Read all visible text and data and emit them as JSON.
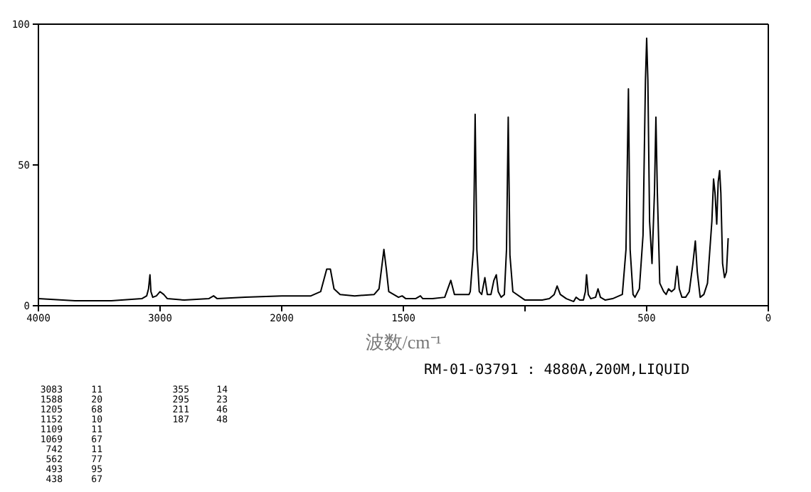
{
  "chart_data": [
    {
      "type": "line",
      "color": "#000000",
      "xlim": [
        4000,
        2000
      ],
      "xticks": [
        4000,
        3000,
        2000
      ],
      "ylim": [
        0,
        100
      ],
      "yticks": [
        0,
        50,
        100
      ],
      "x": [
        4000,
        3700,
        3400,
        3150,
        3110,
        3095,
        3083,
        3075,
        3060,
        3030,
        3000,
        2970,
        2940,
        2800,
        2600,
        2560,
        2530,
        2300,
        2000
      ],
      "values": [
        2.5,
        1.8,
        1.8,
        2.5,
        3.5,
        6,
        11,
        5,
        3,
        3.5,
        5,
        4,
        2.5,
        2,
        2.5,
        3.5,
        2.5,
        3,
        3.5
      ]
    },
    {
      "type": "line",
      "color": "#000000",
      "xlabel": "波数/cm⁻¹",
      "xlim": [
        2000,
        0
      ],
      "xticks": [
        {
          "value": 2000,
          "label": null
        },
        1500,
        {
          "value": 1000,
          "label": null
        },
        500,
        0
      ],
      "ylim": [
        0,
        100
      ],
      "tick_labels": "x",
      "annotations": [
        "RM-01-03791 : 4880A,200M,LIQUID",
        "3083 11",
        "1588 20",
        "1205 68",
        "1152 10",
        "1109 11",
        "1069 67",
        "742 11",
        "562 77",
        "493 95",
        "438 67",
        "355 14",
        "295 23",
        "211 46",
        "187 48"
      ],
      "x": [
        2000,
        1880,
        1840,
        1815,
        1800,
        1785,
        1760,
        1700,
        1620,
        1600,
        1590,
        1580,
        1570,
        1560,
        1520,
        1505,
        1490,
        1450,
        1430,
        1420,
        1380,
        1330,
        1305,
        1290,
        1230,
        1225,
        1212,
        1205,
        1198,
        1188,
        1178,
        1165,
        1155,
        1140,
        1128,
        1118,
        1110,
        1098,
        1085,
        1076,
        1069,
        1062,
        1050,
        1000,
        960,
        930,
        900,
        880,
        868,
        855,
        830,
        800,
        790,
        775,
        760,
        752,
        747,
        740,
        730,
        710,
        700,
        690,
        670,
        640,
        600,
        585,
        575,
        568,
        556,
        548,
        530,
        515,
        505,
        500,
        495,
        488,
        478,
        468,
        462,
        456,
        446,
        430,
        420,
        410,
        398,
        385,
        375,
        366,
        355,
        340,
        325,
        310,
        300,
        292,
        280,
        265,
        250,
        232,
        225,
        219,
        212,
        206,
        200,
        195,
        188,
        180,
        172,
        165
      ],
      "values": [
        3.5,
        3.5,
        5,
        13,
        13,
        6,
        4,
        3.5,
        4,
        6,
        13,
        20,
        13,
        5,
        3,
        3.5,
        2.5,
        2.5,
        3.5,
        2.5,
        2.5,
        3,
        9,
        4,
        4,
        5,
        20,
        68,
        20,
        5,
        4,
        10,
        4,
        4,
        9,
        11,
        5,
        3,
        4,
        20,
        67,
        18,
        5,
        2,
        2,
        2,
        2.5,
        4,
        7,
        4,
        2.5,
        1.5,
        3,
        2,
        2,
        5,
        11,
        4,
        2.5,
        3,
        6,
        3,
        2,
        2.5,
        4,
        20,
        77,
        20,
        4,
        3,
        6,
        25,
        80,
        95,
        80,
        30,
        15,
        40,
        67,
        40,
        8,
        5,
        4,
        6,
        5,
        6,
        14,
        6,
        3,
        3,
        5,
        15,
        23,
        12,
        3,
        4,
        8,
        30,
        45,
        40,
        29,
        44,
        48,
        40,
        15,
        10,
        12,
        24
      ]
    }
  ]
}
